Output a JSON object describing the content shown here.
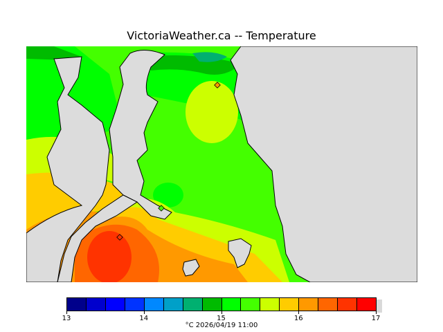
{
  "title": "VictoriaWeather.ca -- Temperature",
  "legend": {
    "colors": [
      "#00008b",
      "#0000cd",
      "#0000ff",
      "#0033ff",
      "#0088ff",
      "#00a0c8",
      "#00b070",
      "#00bb00",
      "#00ff00",
      "#44ff00",
      "#ccff00",
      "#ffcc00",
      "#ff9900",
      "#ff6600",
      "#ff3300",
      "#ff0000"
    ],
    "min": 13,
    "max": 17,
    "ticks": [
      "13",
      "14",
      "15",
      "16",
      "17"
    ]
  },
  "caption": {
    "unit": "°C",
    "datetime": "2026/04/19 11:00"
  },
  "map_colors": {
    "land": "#dcdcdc",
    "water_base": "#44ff00",
    "coastline": "#000000"
  },
  "markers": [
    "station-marker-north",
    "station-marker-middle",
    "station-marker-south"
  ]
}
